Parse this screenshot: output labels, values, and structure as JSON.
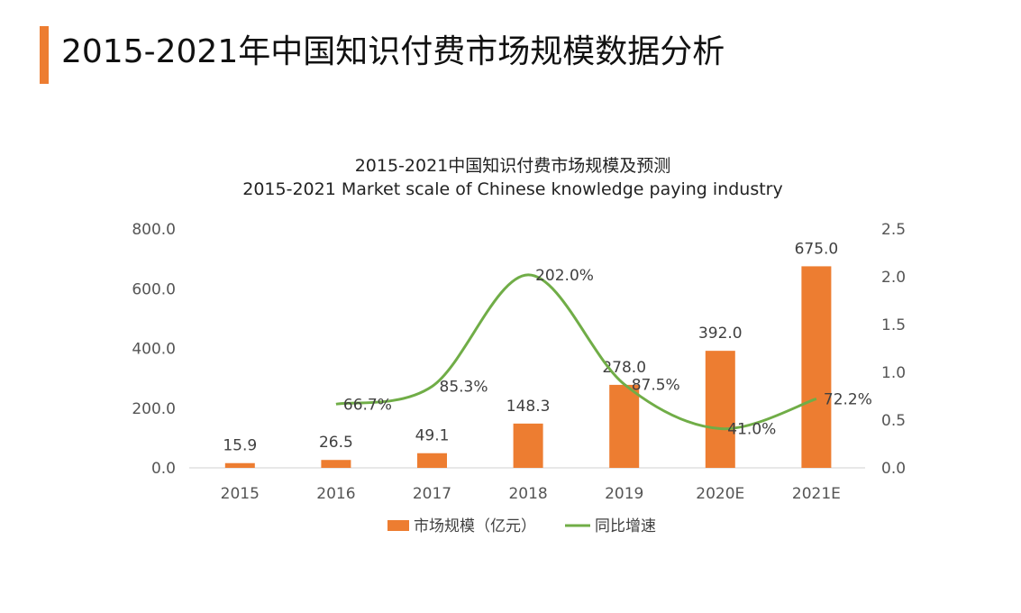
{
  "page": {
    "title": "2015-2021年中国知识付费市场规模数据分析",
    "accent_color": "#ED7D31"
  },
  "chart_data": {
    "type": "bar",
    "title": "2015-2021中国知识付费市场规模及预测",
    "subtitle": "2015-2021 Market scale of Chinese knowledge paying industry",
    "categories": [
      "2015",
      "2016",
      "2017",
      "2018",
      "2019",
      "2020E",
      "2021E"
    ],
    "series": [
      {
        "name": "市场规模（亿元）",
        "type": "bar",
        "axis": "left",
        "color": "#ED7D31",
        "values": [
          15.9,
          26.5,
          49.1,
          148.3,
          278.0,
          392.0,
          675.0
        ],
        "labels": [
          "15.9",
          "26.5",
          "49.1",
          "148.3",
          "278.0",
          "392.0",
          "675.0"
        ]
      },
      {
        "name": "同比增速",
        "type": "line",
        "axis": "right",
        "color": "#70AD47",
        "values": [
          null,
          0.667,
          0.853,
          2.02,
          0.875,
          0.41,
          0.722
        ],
        "labels": [
          "",
          "66.7%",
          "85.3%",
          "202.0%",
          "87.5%",
          "41.0%",
          "72.2%"
        ]
      }
    ],
    "y_left": {
      "ylim": [
        0,
        800
      ],
      "ticks": [
        0,
        200,
        400,
        600,
        800
      ],
      "tick_labels": [
        "0.0",
        "200.0",
        "400.0",
        "600.0",
        "800.0"
      ]
    },
    "y_right": {
      "ylim": [
        0,
        2.5
      ],
      "ticks": [
        0,
        0.5,
        1.0,
        1.5,
        2.0,
        2.5
      ],
      "tick_labels": [
        "0.0",
        "0.5",
        "1.0",
        "1.5",
        "2.0",
        "2.5"
      ]
    },
    "grid": false,
    "legend_position": "bottom"
  }
}
